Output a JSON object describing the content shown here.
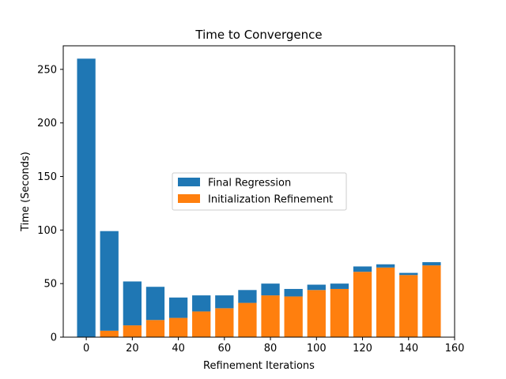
{
  "chart_data": {
    "type": "bar",
    "stacked": true,
    "title": "Time to Convergence",
    "xlabel": "Refinement Iterations",
    "ylabel": "Time (Seconds)",
    "x": [
      0,
      10,
      20,
      30,
      40,
      50,
      60,
      70,
      80,
      90,
      100,
      110,
      120,
      130,
      140,
      150
    ],
    "xlim": [
      -10,
      160
    ],
    "ylim": [
      0,
      272
    ],
    "xticks": [
      0,
      20,
      40,
      60,
      80,
      100,
      120,
      140,
      160
    ],
    "yticks": [
      0,
      50,
      100,
      150,
      200,
      250
    ],
    "series": [
      {
        "name": "Initialization Refinement",
        "color": "#ff7f0e",
        "values": [
          0,
          6,
          11,
          16,
          18,
          24,
          27,
          32,
          39,
          38,
          44,
          45,
          61,
          65,
          58,
          67
        ]
      },
      {
        "name": "Final Regression",
        "color": "#1f77b4",
        "values": [
          260,
          93,
          41,
          31,
          19,
          15,
          12,
          12,
          11,
          7,
          5,
          5,
          5,
          3,
          2,
          3
        ]
      }
    ],
    "legend": {
      "placement": "center",
      "entries": [
        "Final Regression",
        "Initialization Refinement"
      ]
    },
    "grid": false
  }
}
